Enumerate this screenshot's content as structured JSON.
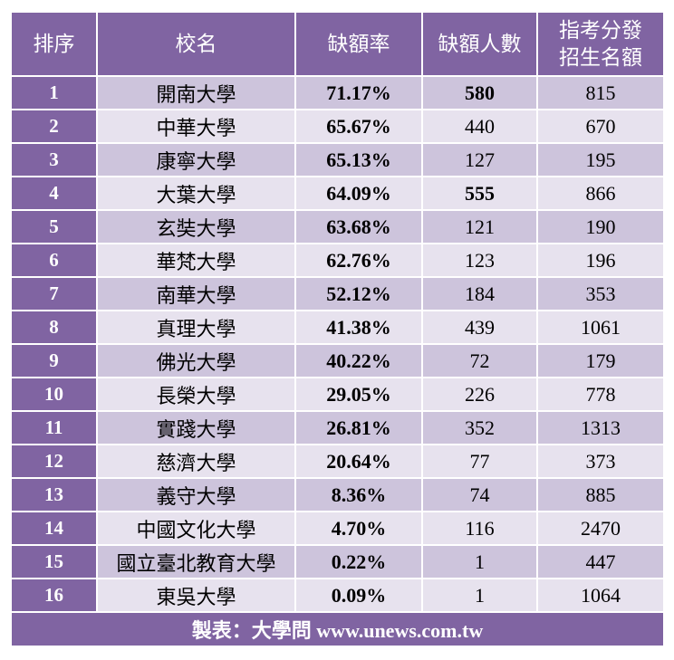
{
  "chart_data": {
    "type": "table",
    "columns": [
      "排序",
      "校名",
      "缺額率",
      "缺額人數",
      "指考分發招生名額"
    ],
    "header": {
      "rank": "排序",
      "school": "校名",
      "rate": "缺額率",
      "vacancies": "缺額人數",
      "quota_line1": "指考分發",
      "quota_line2": "招生名額"
    },
    "rows": [
      {
        "rank": "1",
        "school": "開南大學",
        "rate": "71.17%",
        "vacancies": "580",
        "quota": "815",
        "vac_bold": true
      },
      {
        "rank": "2",
        "school": "中華大學",
        "rate": "65.67%",
        "vacancies": "440",
        "quota": "670",
        "vac_bold": false
      },
      {
        "rank": "3",
        "school": "康寧大學",
        "rate": "65.13%",
        "vacancies": "127",
        "quota": "195",
        "vac_bold": false
      },
      {
        "rank": "4",
        "school": "大葉大學",
        "rate": "64.09%",
        "vacancies": "555",
        "quota": "866",
        "vac_bold": true
      },
      {
        "rank": "5",
        "school": "玄奘大學",
        "rate": "63.68%",
        "vacancies": "121",
        "quota": "190",
        "vac_bold": false
      },
      {
        "rank": "6",
        "school": "華梵大學",
        "rate": "62.76%",
        "vacancies": "123",
        "quota": "196",
        "vac_bold": false
      },
      {
        "rank": "7",
        "school": "南華大學",
        "rate": "52.12%",
        "vacancies": "184",
        "quota": "353",
        "vac_bold": false
      },
      {
        "rank": "8",
        "school": "真理大學",
        "rate": "41.38%",
        "vacancies": "439",
        "quota": "1061",
        "vac_bold": false
      },
      {
        "rank": "9",
        "school": "佛光大學",
        "rate": "40.22%",
        "vacancies": "72",
        "quota": "179",
        "vac_bold": false
      },
      {
        "rank": "10",
        "school": "長榮大學",
        "rate": "29.05%",
        "vacancies": "226",
        "quota": "778",
        "vac_bold": false
      },
      {
        "rank": "11",
        "school": "實踐大學",
        "rate": "26.81%",
        "vacancies": "352",
        "quota": "1313",
        "vac_bold": false
      },
      {
        "rank": "12",
        "school": "慈濟大學",
        "rate": "20.64%",
        "vacancies": "77",
        "quota": "373",
        "vac_bold": false
      },
      {
        "rank": "13",
        "school": "義守大學",
        "rate": "8.36%",
        "vacancies": "74",
        "quota": "885",
        "vac_bold": false
      },
      {
        "rank": "14",
        "school": "中國文化大學",
        "rate": "4.70%",
        "vacancies": "116",
        "quota": "2470",
        "vac_bold": false
      },
      {
        "rank": "15",
        "school": "國立臺北教育大學",
        "rate": "0.22%",
        "vacancies": "1",
        "quota": "447",
        "vac_bold": false
      },
      {
        "rank": "16",
        "school": "東吳大學",
        "rate": "0.09%",
        "vacancies": "1",
        "quota": "1064",
        "vac_bold": false
      }
    ],
    "footer": "製表：大學問 www.unews.com.tw"
  },
  "colors": {
    "header_bg": "#8064a2",
    "row_odd": "#cdc4dc",
    "row_even": "#e7e2ee"
  }
}
